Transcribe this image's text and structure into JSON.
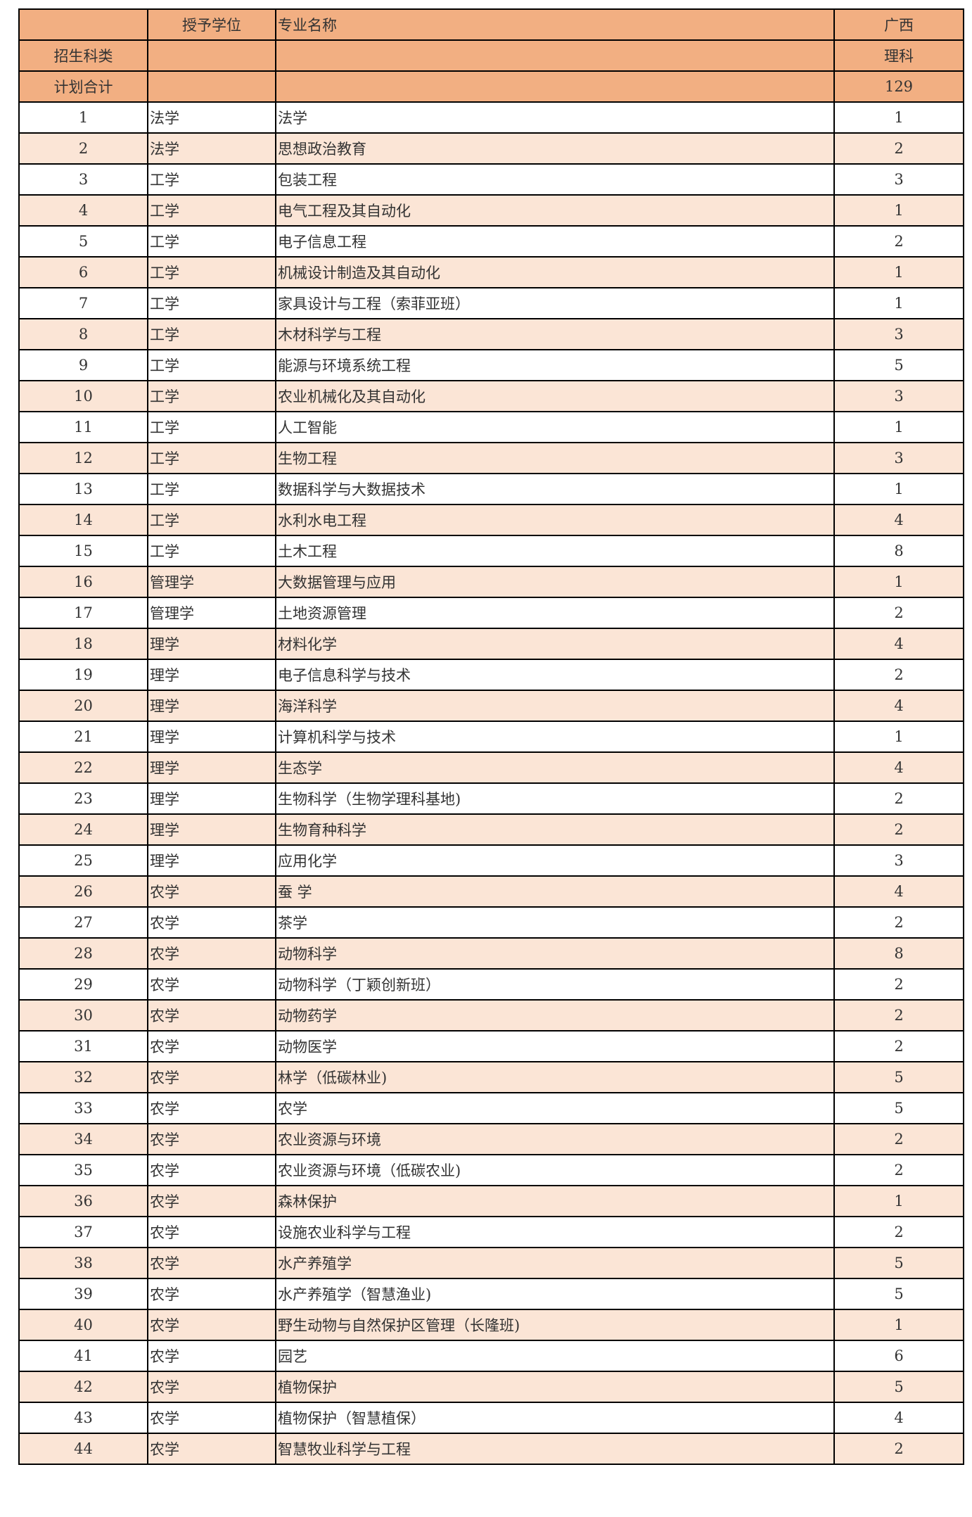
{
  "colors": {
    "header": "#F2AF82",
    "alt_row": "#FBE5D6"
  },
  "header": {
    "row1": {
      "c1": "",
      "c2": "授予学位",
      "c3": "专业名称",
      "c4": "广西"
    },
    "row2": {
      "c1": "招生科类",
      "c2": "",
      "c3": "",
      "c4": "理科"
    },
    "row3": {
      "c1": "计划合计",
      "c2": "",
      "c3": "",
      "c4": "129"
    }
  },
  "rows": [
    [
      "1",
      "法学",
      "法学",
      "1"
    ],
    [
      "2",
      "法学",
      "思想政治教育",
      "2"
    ],
    [
      "3",
      "工学",
      "包装工程",
      "3"
    ],
    [
      "4",
      "工学",
      "电气工程及其自动化",
      "1"
    ],
    [
      "5",
      "工学",
      "电子信息工程",
      "2"
    ],
    [
      "6",
      "工学",
      "机械设计制造及其自动化",
      "1"
    ],
    [
      "7",
      "工学",
      "家具设计与工程（索菲亚班）",
      "1"
    ],
    [
      "8",
      "工学",
      "木材科学与工程",
      "3"
    ],
    [
      "9",
      "工学",
      "能源与环境系统工程",
      "5"
    ],
    [
      "10",
      "工学",
      "农业机械化及其自动化",
      "3"
    ],
    [
      "11",
      "工学",
      "人工智能",
      "1"
    ],
    [
      "12",
      "工学",
      "生物工程",
      "3"
    ],
    [
      "13",
      "工学",
      "数据科学与大数据技术",
      "1"
    ],
    [
      "14",
      "工学",
      "水利水电工程",
      "4"
    ],
    [
      "15",
      "工学",
      "土木工程",
      "8"
    ],
    [
      "16",
      "管理学",
      "大数据管理与应用",
      "1"
    ],
    [
      "17",
      "管理学",
      "土地资源管理",
      "2"
    ],
    [
      "18",
      "理学",
      "材料化学",
      "4"
    ],
    [
      "19",
      "理学",
      "电子信息科学与技术",
      "2"
    ],
    [
      "20",
      "理学",
      "海洋科学",
      "4"
    ],
    [
      "21",
      "理学",
      "计算机科学与技术",
      "1"
    ],
    [
      "22",
      "理学",
      "生态学",
      "4"
    ],
    [
      "23",
      "理学",
      "生物科学（生物学理科基地)",
      "2"
    ],
    [
      "24",
      "理学",
      "生物育种科学",
      "2"
    ],
    [
      "25",
      "理学",
      "应用化学",
      "3"
    ],
    [
      "26",
      "农学",
      "蚕  学",
      "4"
    ],
    [
      "27",
      "农学",
      "茶学",
      "2"
    ],
    [
      "28",
      "农学",
      "动物科学",
      "8"
    ],
    [
      "29",
      "农学",
      "动物科学（丁颖创新班）",
      "2"
    ],
    [
      "30",
      "农学",
      "动物药学",
      "2"
    ],
    [
      "31",
      "农学",
      "动物医学",
      "2"
    ],
    [
      "32",
      "农学",
      "林学（低碳林业)",
      "5"
    ],
    [
      "33",
      "农学",
      "农学",
      "5"
    ],
    [
      "34",
      "农学",
      "农业资源与环境",
      "2"
    ],
    [
      "35",
      "农学",
      "农业资源与环境（低碳农业)",
      "2"
    ],
    [
      "36",
      "农学",
      "森林保护",
      "1"
    ],
    [
      "37",
      "农学",
      "设施农业科学与工程",
      "2"
    ],
    [
      "38",
      "农学",
      "水产养殖学",
      "5"
    ],
    [
      "39",
      "农学",
      "水产养殖学（智慧渔业)",
      "5"
    ],
    [
      "40",
      "农学",
      "野生动物与自然保护区管理（长隆班)",
      "1"
    ],
    [
      "41",
      "农学",
      "园艺",
      "6"
    ],
    [
      "42",
      "农学",
      "植物保护",
      "5"
    ],
    [
      "43",
      "农学",
      "植物保护（智慧植保）",
      "4"
    ],
    [
      "44",
      "农学",
      "智慧牧业科学与工程",
      "2"
    ]
  ]
}
